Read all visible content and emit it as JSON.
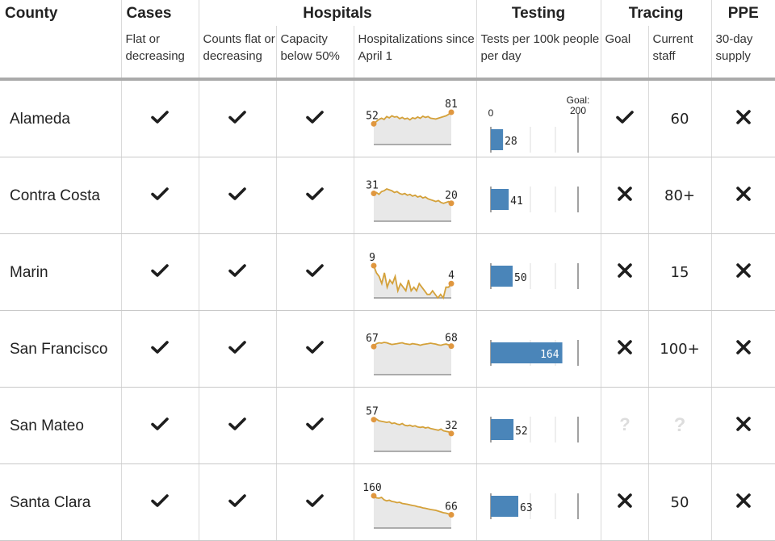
{
  "headers": {
    "county": "County",
    "cases": "Cases",
    "hospitals": "Hospitals",
    "testing": "Testing",
    "tracing": "Tracing",
    "ppe": "PPE"
  },
  "subheaders": {
    "cases": "Flat or decreasing",
    "counts": "Counts flat or decreasing",
    "capacity": "Capacity below 50%",
    "hospitalizations": "Hospitalizations since April 1",
    "tests": "Tests per 100k people per day",
    "goal": "Goal",
    "staff": "Current staff",
    "supply": "30-day supply"
  },
  "testing_axis": {
    "zero_label": "0",
    "goal_label": "Goal:",
    "goal_value": "200",
    "max": 200
  },
  "colors": {
    "spark_line": "#d4a13a",
    "spark_dot": "#e0973f",
    "spark_fill": "#e8e8e8",
    "bar": "#4a85b9",
    "check": "#1e1e1e",
    "unknown": "#dddddd"
  },
  "rows": [
    {
      "county": "Alameda",
      "cases": "check-icon",
      "counts": "check-icon",
      "capacity": "check-icon",
      "hosp_start": "52",
      "hosp_end": "81",
      "hosp_series": [
        52,
        58,
        63,
        66,
        63,
        70,
        67,
        72,
        69,
        70,
        65,
        68,
        64,
        66,
        62,
        67,
        65,
        69,
        66,
        71,
        68,
        70,
        66,
        65,
        64,
        66,
        68,
        70,
        72,
        76,
        81
      ],
      "tests": 28,
      "tracing_goal": "check-icon",
      "staff": "60",
      "ppe": "x-icon"
    },
    {
      "county": "Contra Costa",
      "cases": "check-icon",
      "counts": "check-icon",
      "capacity": "check-icon",
      "hosp_start": "31",
      "hosp_end": "20",
      "hosp_series": [
        31,
        32,
        30,
        33,
        34,
        36,
        35,
        34,
        32,
        33,
        31,
        30,
        31,
        29,
        30,
        28,
        29,
        27,
        28,
        26,
        27,
        25,
        24,
        23,
        22,
        23,
        21,
        20,
        21,
        22,
        20
      ],
      "tests": 41,
      "tracing_goal": "x-icon",
      "staff": "80+",
      "ppe": "x-icon"
    },
    {
      "county": "Marin",
      "cases": "check-icon",
      "counts": "check-icon",
      "capacity": "check-icon",
      "hosp_start": "9",
      "hosp_end": "4",
      "hosp_series": [
        9,
        7,
        6,
        4,
        7,
        3,
        5,
        4,
        6,
        2,
        4,
        3,
        2,
        5,
        2,
        3,
        2,
        4,
        3,
        2,
        1,
        1,
        2,
        1,
        0,
        1,
        0,
        3,
        3,
        4
      ],
      "tests": 50,
      "tracing_goal": "x-icon",
      "staff": "15",
      "ppe": "x-icon"
    },
    {
      "county": "San Francisco",
      "cases": "check-icon",
      "counts": "check-icon",
      "capacity": "check-icon",
      "hosp_start": "67",
      "hosp_end": "68",
      "hosp_series": [
        67,
        74,
        76,
        75,
        77,
        76,
        74,
        72,
        73,
        74,
        75,
        76,
        74,
        73,
        72,
        74,
        73,
        72,
        70,
        72,
        73,
        74,
        75,
        74,
        73,
        71,
        70,
        72,
        73,
        71,
        68
      ],
      "tests": 164,
      "tracing_goal": "x-icon",
      "staff": "100+",
      "ppe": "x-icon"
    },
    {
      "county": "San Mateo",
      "cases": "check-icon",
      "counts": "check-icon",
      "capacity": "check-icon",
      "hosp_start": "57",
      "hosp_end": "32",
      "hosp_series": [
        57,
        58,
        55,
        54,
        53,
        52,
        53,
        50,
        51,
        49,
        48,
        50,
        47,
        46,
        47,
        45,
        46,
        44,
        43,
        44,
        42,
        43,
        41,
        40,
        39,
        38,
        40,
        37,
        36,
        35,
        32
      ],
      "tests": 52,
      "tracing_goal": "question-icon",
      "staff": "?",
      "ppe": "x-icon"
    },
    {
      "county": "Santa Clara",
      "cases": "check-icon",
      "counts": "check-icon",
      "capacity": "check-icon",
      "hosp_start": "160",
      "hosp_end": "66",
      "hosp_series": [
        160,
        150,
        148,
        152,
        140,
        135,
        138,
        132,
        130,
        126,
        128,
        122,
        120,
        118,
        115,
        112,
        110,
        106,
        104,
        100,
        98,
        95,
        92,
        90,
        88,
        84,
        80,
        76,
        74,
        70,
        66
      ],
      "tests": 63,
      "tracing_goal": "x-icon",
      "staff": "50",
      "ppe": "x-icon"
    }
  ]
}
